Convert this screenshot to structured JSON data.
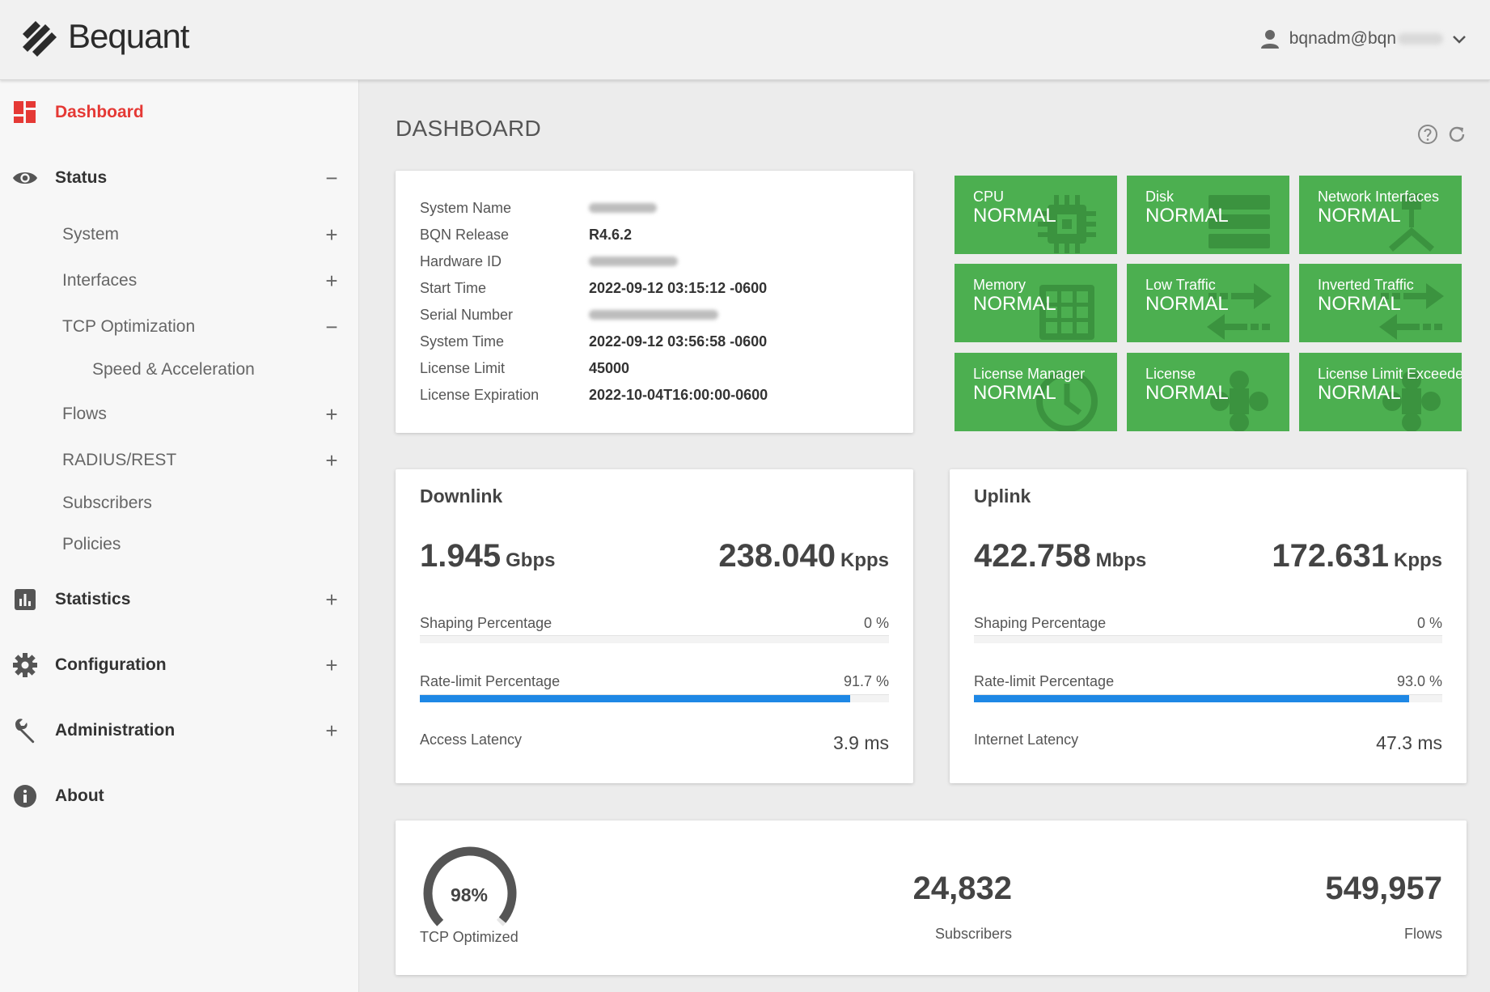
{
  "header": {
    "brand": "Bequant",
    "user": "bqnadm@bqn"
  },
  "sidebar": {
    "items": [
      {
        "label": "Dashboard",
        "icon": "dashboard-icon",
        "active": true
      },
      {
        "label": "Status",
        "icon": "eye-icon",
        "expander": "−"
      },
      {
        "label": "System",
        "expander": "+"
      },
      {
        "label": "Interfaces",
        "expander": "+"
      },
      {
        "label": "TCP Optimization",
        "expander": "−"
      },
      {
        "label": "Speed & Acceleration"
      },
      {
        "label": "Flows",
        "expander": "+"
      },
      {
        "label": "RADIUS/REST",
        "expander": "+"
      },
      {
        "label": "Subscribers"
      },
      {
        "label": "Policies"
      },
      {
        "label": "Statistics",
        "icon": "bar-chart-icon",
        "expander": "+"
      },
      {
        "label": "Configuration",
        "icon": "gear-icon",
        "expander": "+"
      },
      {
        "label": "Administration",
        "icon": "wrench-icon",
        "expander": "+"
      },
      {
        "label": "About",
        "icon": "info-icon"
      }
    ]
  },
  "main": {
    "title": "DASHBOARD"
  },
  "system": {
    "rows": [
      {
        "key": "System Name",
        "value": ""
      },
      {
        "key": "BQN Release",
        "value": "R4.6.2"
      },
      {
        "key": "Hardware ID",
        "value": ""
      },
      {
        "key": "Start Time",
        "value": "2022-09-12 03:15:12 -0600"
      },
      {
        "key": "Serial Number",
        "value": ""
      },
      {
        "key": "System Time",
        "value": "2022-09-12 03:56:58 -0600"
      },
      {
        "key": "License Limit",
        "value": "45000"
      },
      {
        "key": "License Expiration",
        "value": "2022-10-04T16:00:00-0600"
      }
    ]
  },
  "status_tiles": [
    {
      "name": "CPU",
      "state": "NORMAL",
      "icon": "cpu-icon"
    },
    {
      "name": "Disk",
      "state": "NORMAL",
      "icon": "disk-icon"
    },
    {
      "name": "Network Interfaces",
      "state": "NORMAL",
      "icon": "network-icon"
    },
    {
      "name": "Memory",
      "state": "NORMAL",
      "icon": "memory-icon"
    },
    {
      "name": "Low Traffic",
      "state": "NORMAL",
      "icon": "transfer-icon"
    },
    {
      "name": "Inverted Traffic",
      "state": "NORMAL",
      "icon": "transfer-icon"
    },
    {
      "name": "License Manager",
      "state": "NORMAL",
      "icon": "clock-icon"
    },
    {
      "name": "License",
      "state": "NORMAL",
      "icon": "puzzle-icon"
    },
    {
      "name": "License Limit Exceeded",
      "state": "NORMAL",
      "icon": "puzzle-icon"
    }
  ],
  "downlink": {
    "title": "Downlink",
    "throughput": "1.945",
    "throughput_unit": "Gbps",
    "packets": "238.040",
    "packets_unit": "Kpps",
    "shaping_label": "Shaping Percentage",
    "shaping_value": "0 %",
    "shaping_fraction": 0,
    "ratelimit_label": "Rate-limit Percentage",
    "ratelimit_value": "91.7 %",
    "ratelimit_fraction": 0.917,
    "latency_label": "Access Latency",
    "latency_value": "3.9 ms"
  },
  "uplink": {
    "title": "Uplink",
    "throughput": "422.758",
    "throughput_unit": "Mbps",
    "packets": "172.631",
    "packets_unit": "Kpps",
    "shaping_label": "Shaping Percentage",
    "shaping_value": "0 %",
    "shaping_fraction": 0,
    "ratelimit_label": "Rate-limit Percentage",
    "ratelimit_value": "93.0 %",
    "ratelimit_fraction": 0.93,
    "latency_label": "Internet Latency",
    "latency_value": "47.3 ms"
  },
  "summary": {
    "tcp_percent": "98%",
    "tcp_fraction": 0.98,
    "tcp_label": "TCP Optimized",
    "subscribers": "24,832",
    "subscribers_label": "Subscribers",
    "flows": "549,957",
    "flows_label": "Flows"
  },
  "colors": {
    "accent": "#e53935",
    "tile_green": "#4caf50",
    "bar_blue": "#1e88e5"
  }
}
